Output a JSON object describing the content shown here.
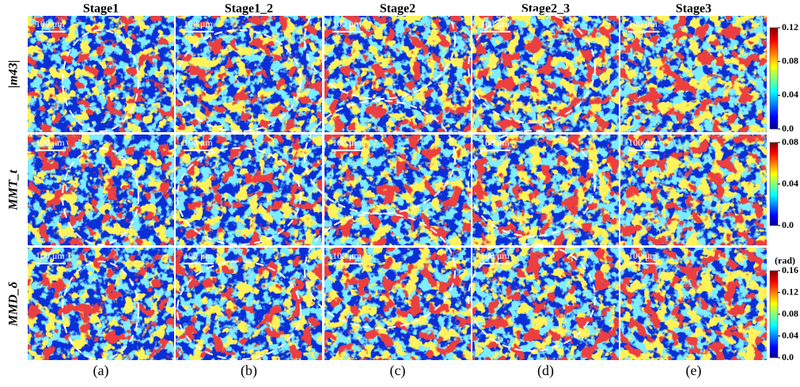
{
  "columns": [
    "Stage1",
    "Stage1_2",
    "Stage2",
    "Stage2_3",
    "Stage3"
  ],
  "rows": [
    "|m43|",
    "MMT_t",
    "MMD_δ"
  ],
  "panel_labels": [
    "(a)",
    "(b)",
    "(c)",
    "(d)",
    "(e)"
  ],
  "scale_bar": "100 μm",
  "colorbars": [
    {
      "lim": [
        0,
        0.12
      ],
      "ticks": [
        {
          "value": 0,
          "label": "0.0"
        },
        0.04,
        0.08,
        0.12
      ]
    },
    {
      "lim": [
        0,
        0.08
      ],
      "ticks": [
        {
          "value": 0,
          "label": "0.0"
        },
        0.04,
        0.08
      ]
    },
    {
      "unit": "(rad)",
      "lim": [
        0,
        0.16
      ],
      "ticks": [
        {
          "value": 0,
          "label": "0.0"
        },
        0.04,
        0.08,
        0.12,
        0.16
      ]
    }
  ]
}
